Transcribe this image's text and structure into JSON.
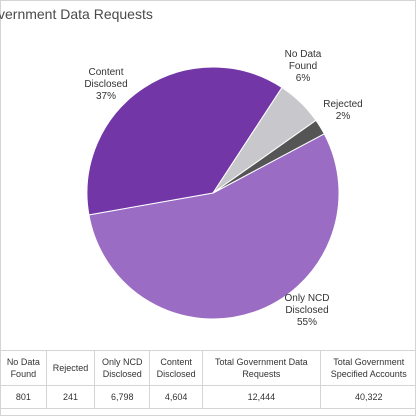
{
  "title": "vernment Data Requests",
  "chart_data": {
    "type": "pie",
    "slices": [
      {
        "label_lines": [
          "Only NCD",
          "Disclosed",
          "55%"
        ],
        "value": 55,
        "color": "#9a6cc4"
      },
      {
        "label_lines": [
          "Content",
          "Disclosed",
          "37%"
        ],
        "value": 37,
        "color": "#7236a6"
      },
      {
        "label_lines": [
          "No Data",
          "Found",
          "6%"
        ],
        "value": 6,
        "color": "#c8c8cc"
      },
      {
        "label_lines": [
          "Rejected",
          "2%"
        ],
        "value": 2,
        "color": "#555555"
      }
    ]
  },
  "table": {
    "headers": [
      [
        "No Data",
        "Found"
      ],
      [
        "Rejected"
      ],
      [
        "Only NCD",
        "Disclosed"
      ],
      [
        "Content",
        "Disclosed"
      ],
      [
        "Total Government Data",
        "Requests"
      ],
      [
        "Total Government",
        "Specified Accounts"
      ]
    ],
    "values": [
      "801",
      "241",
      "6,798",
      "4,604",
      "12,444",
      "40,322"
    ]
  }
}
